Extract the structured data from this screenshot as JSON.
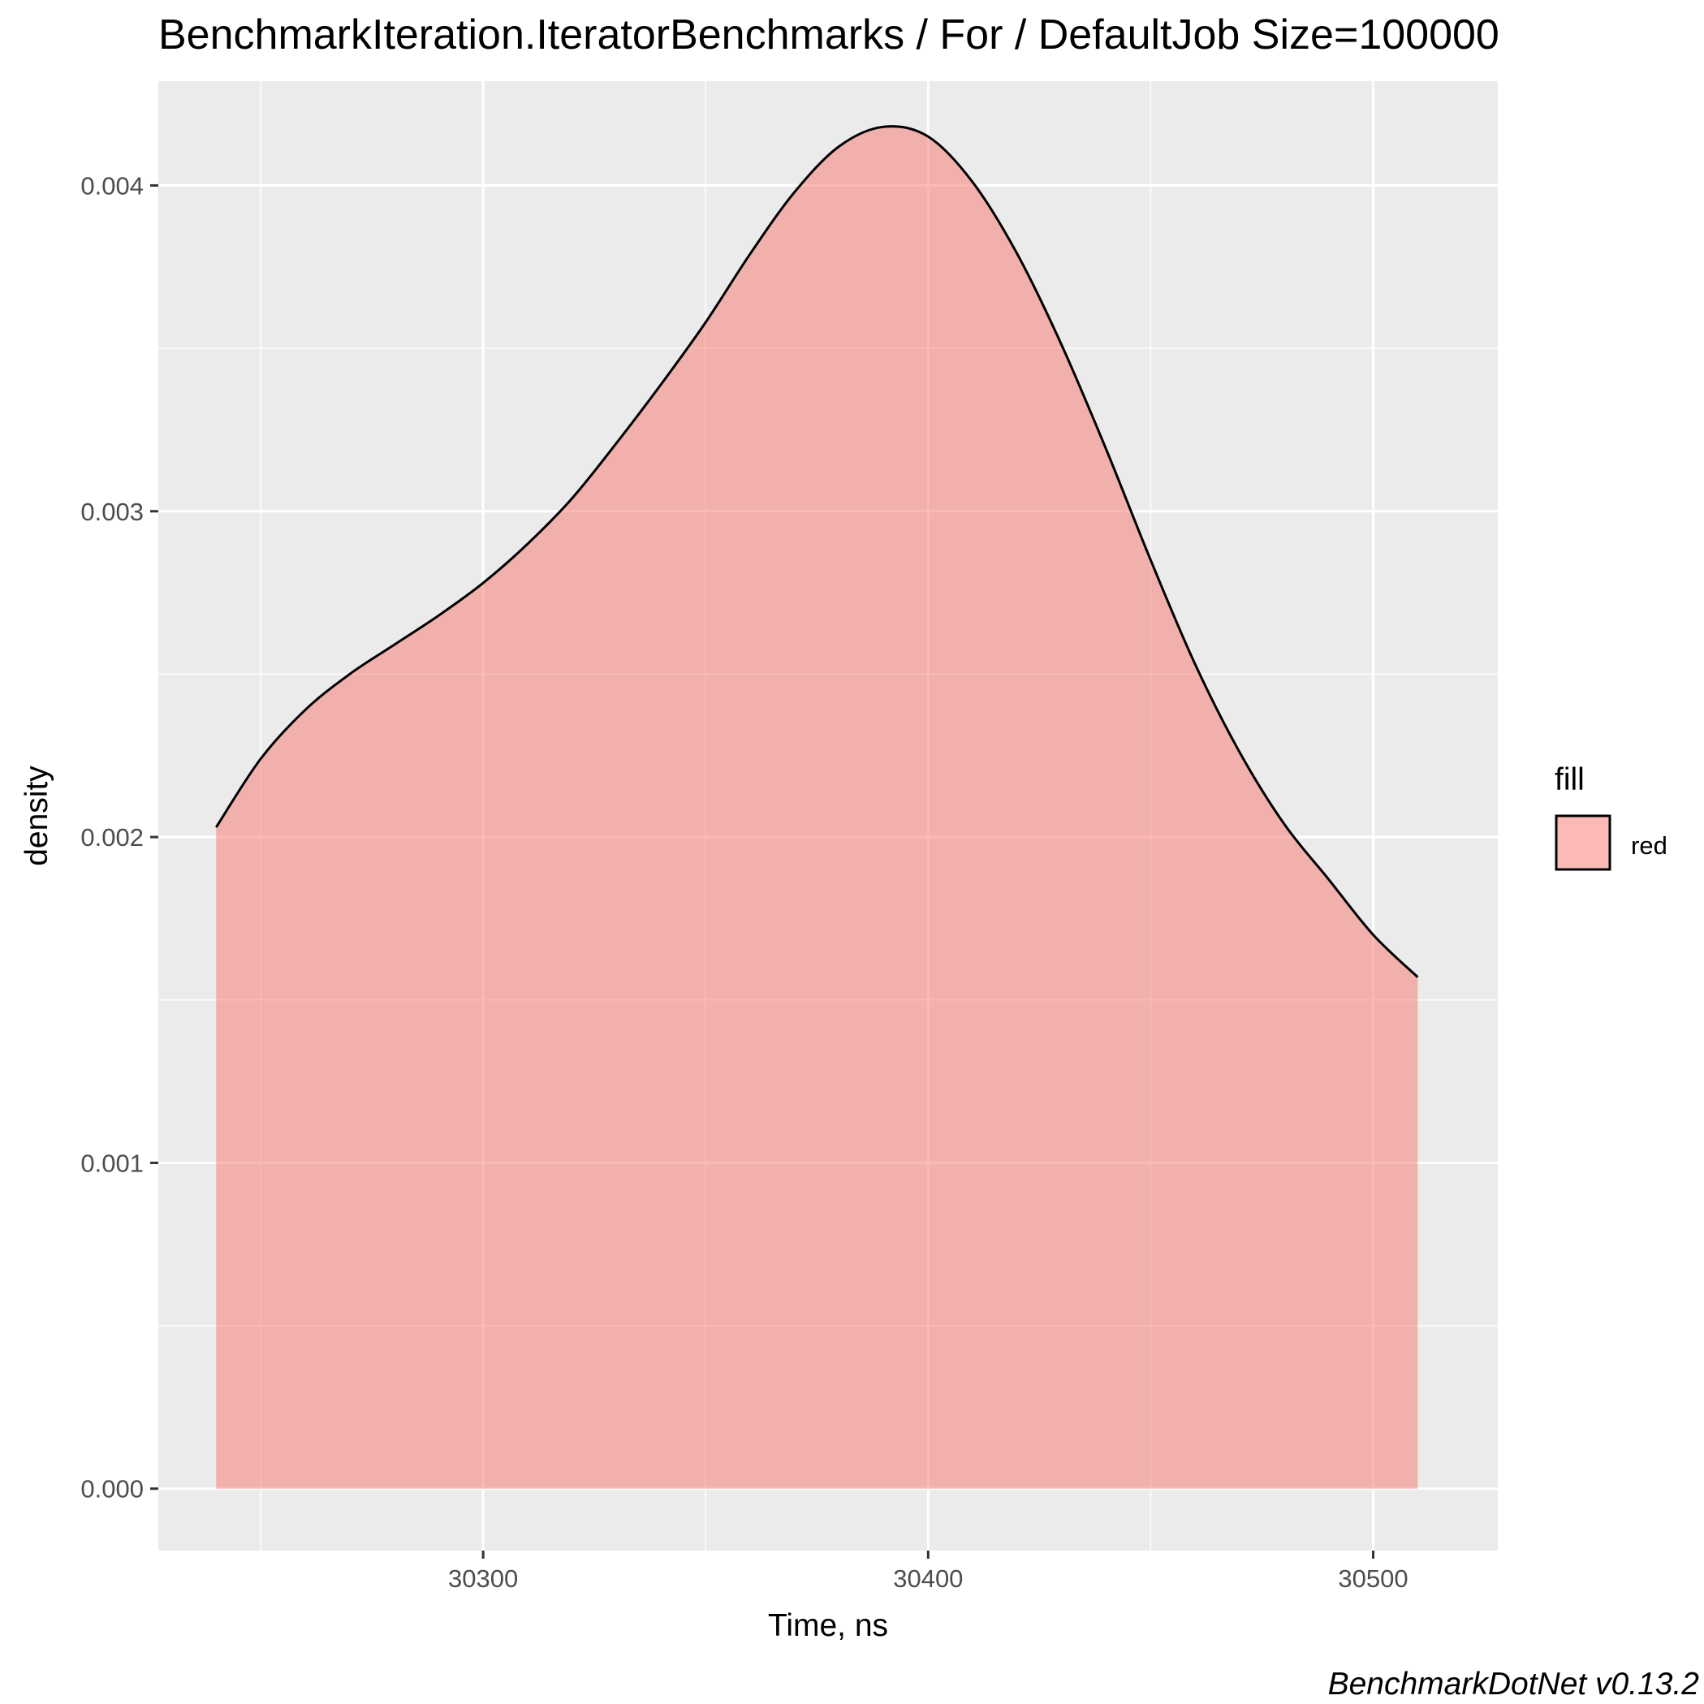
{
  "chart_data": {
    "type": "area",
    "title": "BenchmarkIteration.IteratorBenchmarks / For / DefaultJob Size=100000",
    "xlabel": "Time, ns",
    "ylabel": "density",
    "x_ticks": [
      30300,
      30400,
      30500
    ],
    "y_ticks": [
      0.0,
      0.001,
      0.002,
      0.003,
      0.004
    ],
    "y_tick_labels": [
      "0.000",
      "0.001",
      "0.002",
      "0.003",
      "0.004"
    ],
    "xlim": [
      30227,
      30528
    ],
    "ylim": [
      -0.00019,
      0.00432
    ],
    "grid": true,
    "legend": {
      "title": "fill",
      "position": "right",
      "entries": [
        {
          "label": "red",
          "color": "#F8766D"
        }
      ]
    },
    "series": [
      {
        "name": "red",
        "color": "#F8766D",
        "x": [
          30240,
          30250,
          30260,
          30270,
          30280,
          30290,
          30300,
          30310,
          30320,
          30330,
          30340,
          30350,
          30360,
          30370,
          30380,
          30390,
          30400,
          30410,
          30420,
          30430,
          30440,
          30450,
          30460,
          30470,
          30480,
          30490,
          30500,
          30510
        ],
        "y": [
          0.00203,
          0.00224,
          0.00239,
          0.0025,
          0.00259,
          0.00268,
          0.00278,
          0.0029,
          0.00304,
          0.00321,
          0.00339,
          0.00358,
          0.00379,
          0.00398,
          0.00412,
          0.00418,
          0.00415,
          0.00401,
          0.00379,
          0.00351,
          0.00319,
          0.00285,
          0.00253,
          0.00226,
          0.00204,
          0.00187,
          0.0017,
          0.00157
        ]
      }
    ]
  },
  "caption": "BenchmarkDotNet v0.13.2",
  "colors": {
    "panel_background": "#EBEBEB",
    "grid": "#FFFFFF",
    "fill": "#F8766D",
    "fill_opacity": 0.5,
    "line": "#000000"
  }
}
